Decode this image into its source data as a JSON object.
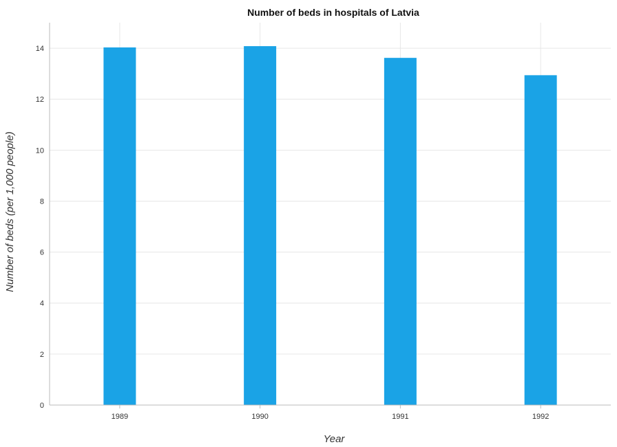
{
  "chart_data": {
    "type": "bar",
    "title": "Number of beds in hospitals of Latvia",
    "xlabel": "Year",
    "ylabel": "Number of beds (per 1,000 people)",
    "categories": [
      "1989",
      "1990",
      "1991",
      "1992"
    ],
    "values": [
      14.03,
      14.08,
      13.62,
      12.94
    ],
    "ylim": [
      0,
      15
    ],
    "yticks": [
      0,
      2,
      4,
      6,
      8,
      10,
      12,
      14
    ],
    "grid": true,
    "bar_color": "#1aa3e6",
    "legend": "none"
  }
}
